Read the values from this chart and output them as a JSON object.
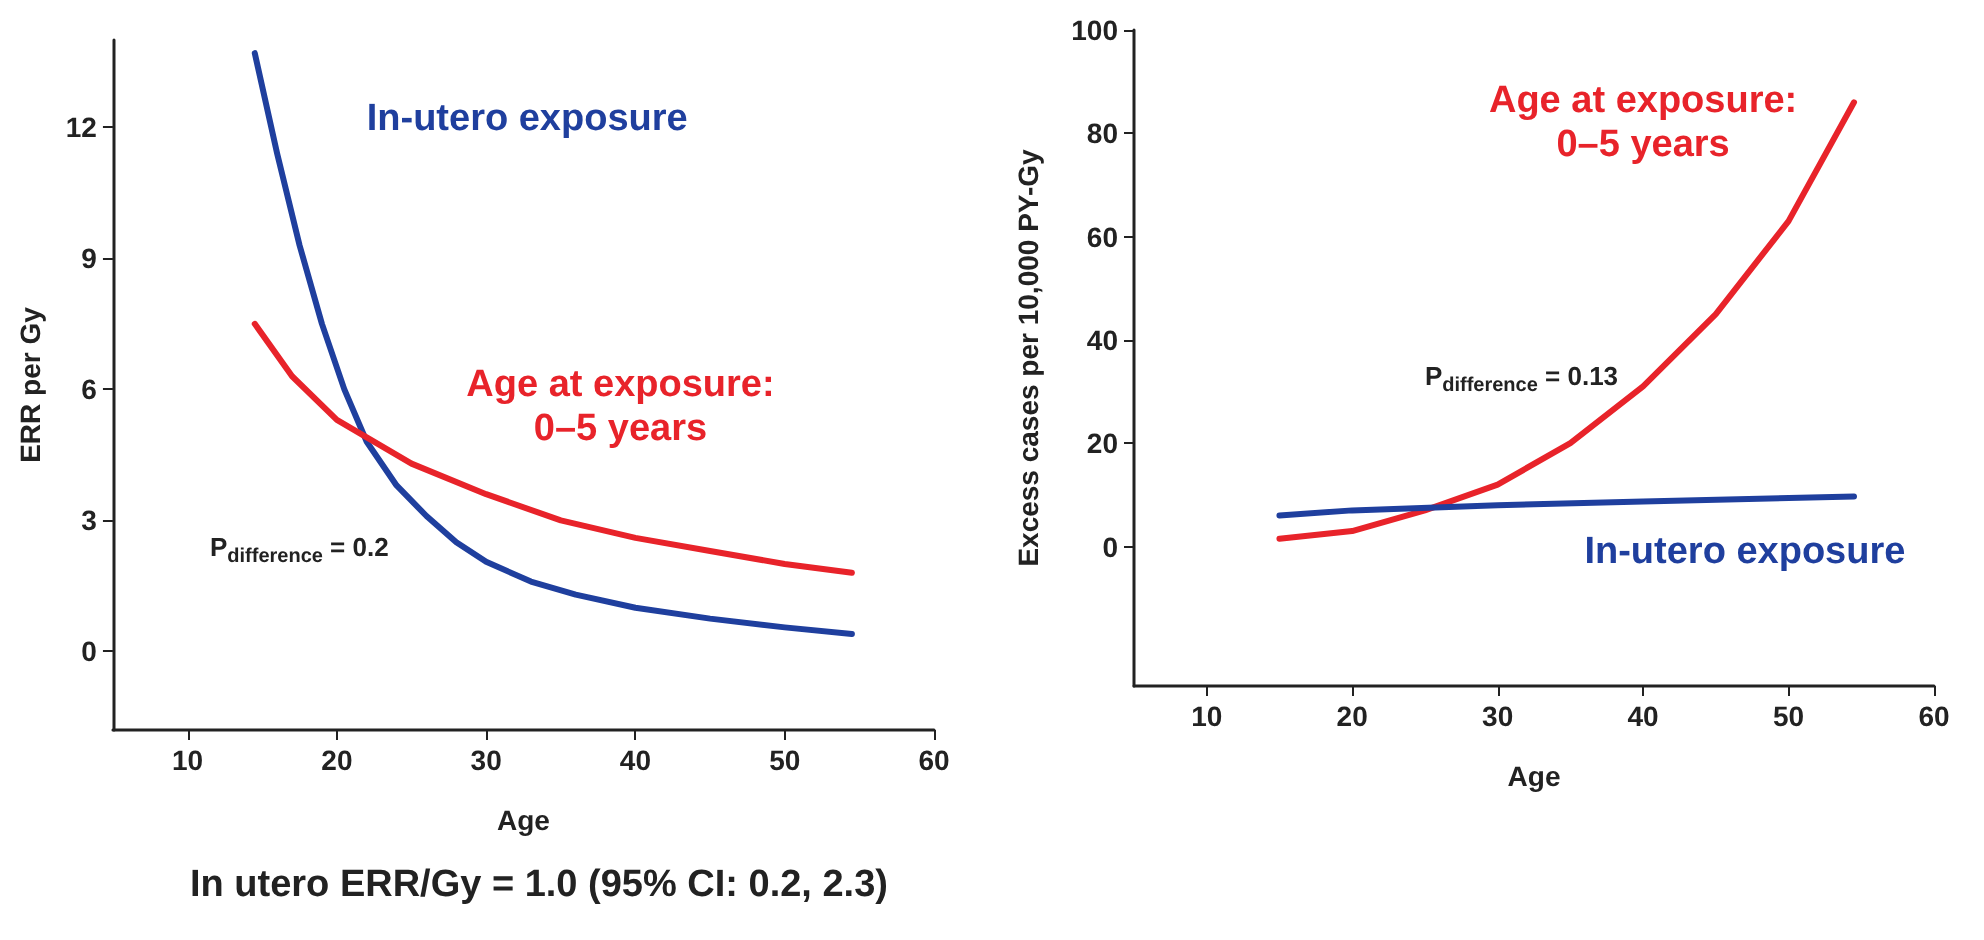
{
  "chart_data": [
    {
      "type": "line",
      "xlabel": "Age",
      "ylabel": "ERR per Gy",
      "xlim": [
        5,
        60
      ],
      "xticks": [
        10,
        20,
        30,
        40,
        50,
        60
      ],
      "ylim": [
        -1.8,
        14
      ],
      "yticks": [
        0,
        3,
        6,
        9,
        12
      ],
      "grid": false,
      "legend": false,
      "marker": "none",
      "line_style": "solid",
      "annotations": [
        "P$_{difference}$ = 0.2",
        "In utero ERR/Gy = 1.0 (95% CI: 0.2, 2.3)"
      ],
      "series": [
        {
          "name": "In-utero exposure",
          "color": "#1f3f9e",
          "x": [
            14.5,
            16,
            17.5,
            19,
            20.5,
            22,
            24,
            26,
            28,
            30,
            33,
            36,
            40,
            45,
            50,
            54.5
          ],
          "values": [
            13.7,
            11.4,
            9.3,
            7.5,
            6.0,
            4.8,
            3.8,
            3.1,
            2.5,
            2.05,
            1.6,
            1.3,
            1.0,
            0.75,
            0.55,
            0.4
          ]
        },
        {
          "name": "Age at exposure: 0–5 years",
          "color": "#e8232a",
          "x": [
            14.5,
            17,
            20,
            25,
            30,
            35,
            40,
            45,
            50,
            54.5
          ],
          "values": [
            7.5,
            6.3,
            5.3,
            4.3,
            3.6,
            3.0,
            2.6,
            2.3,
            2.0,
            1.8
          ]
        }
      ]
    },
    {
      "type": "line",
      "xlabel": "Age",
      "ylabel": "Excess cases per 10,000 PY-Gy",
      "xlim": [
        5,
        60
      ],
      "xticks": [
        10,
        20,
        30,
        40,
        50,
        60
      ],
      "ylim": [
        -27,
        100
      ],
      "yticks": [
        0,
        20,
        40,
        60,
        80,
        100
      ],
      "grid": false,
      "legend": false,
      "marker": "none",
      "line_style": "solid",
      "annotations": [
        "P$_{difference}$ = 0.13"
      ],
      "series": [
        {
          "name": "Age at exposure: 0–5 years",
          "color": "#e8232a",
          "x": [
            15,
            20,
            25,
            30,
            35,
            40,
            45,
            50,
            54.5
          ],
          "values": [
            1.5,
            3,
            7,
            12,
            20,
            31,
            45,
            63,
            86
          ]
        },
        {
          "name": "In-utero exposure",
          "color": "#1f3f9e",
          "x": [
            15,
            20,
            30,
            40,
            54.5
          ],
          "values": [
            6,
            7,
            8,
            8.7,
            9.7
          ]
        }
      ]
    }
  ]
}
